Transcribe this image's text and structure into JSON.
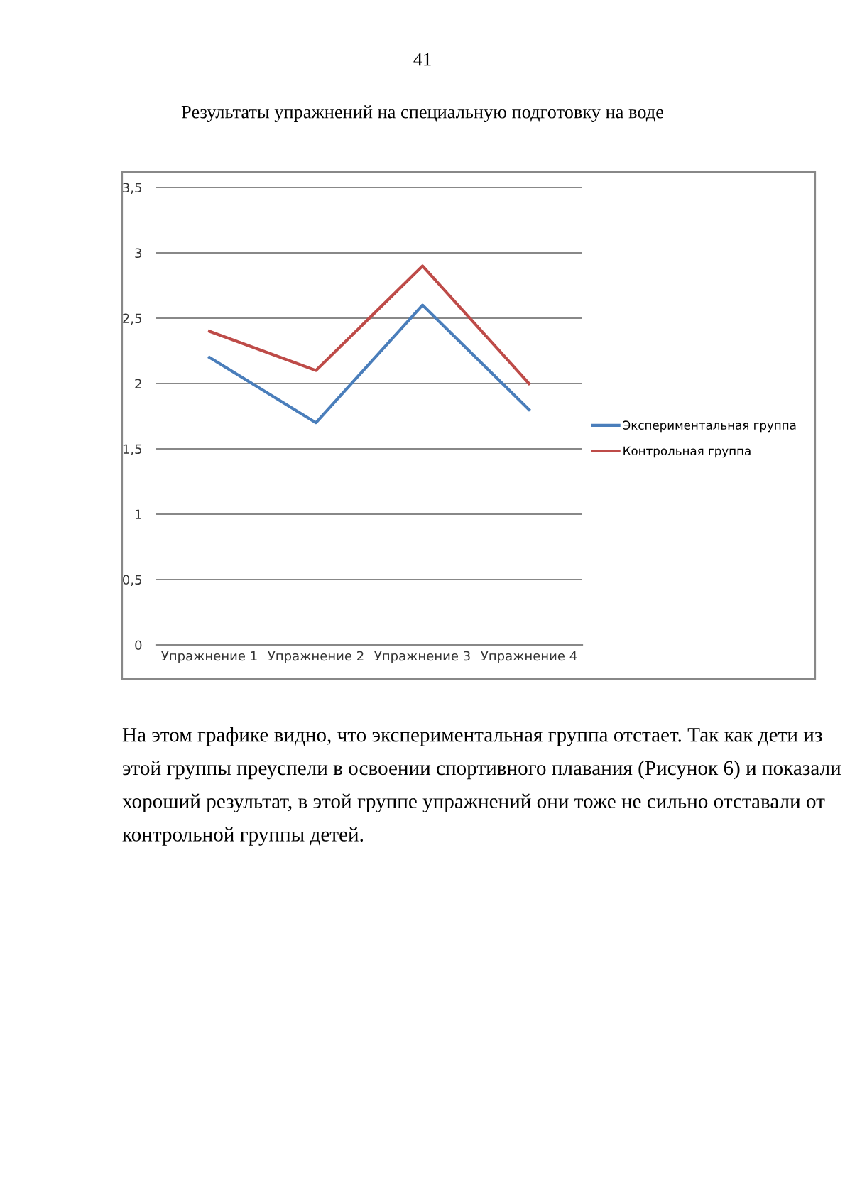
{
  "chart_data": {
    "type": "line",
    "title": "Результаты упражнений на специальную подготовку на воде",
    "categories": [
      "Упражнение 1",
      "Упражнение 2",
      "Упражнение 3",
      "Упражнение 4"
    ],
    "series": [
      {
        "name": "Экспериментальная группа",
        "color": "#4a7ebb",
        "values": [
          2.2,
          1.7,
          2.6,
          1.8
        ]
      },
      {
        "name": "Контрольная группа",
        "color": "#be4b48",
        "values": [
          2.4,
          2.1,
          2.9,
          2.0
        ]
      }
    ],
    "ylim": [
      0,
      3.5
    ],
    "yticks": [
      {
        "value": 0,
        "label": "0"
      },
      {
        "value": 0.5,
        "label": "0,5"
      },
      {
        "value": 1,
        "label": "1"
      },
      {
        "value": 1.5,
        "label": "1,5"
      },
      {
        "value": 2,
        "label": "2"
      },
      {
        "value": 2.5,
        "label": "2,5"
      },
      {
        "value": 3,
        "label": "3"
      },
      {
        "value": 3.5,
        "label": "3,5"
      }
    ],
    "grid": "y",
    "legend": "right",
    "marker": "none",
    "line_style": "solid",
    "annotations": [
      "41",
      "На этом графике видно, что экспериментальная группа отстает. Так как дети из этой группы преуспели в освоении спортивного плавания (Рисунок 6) и показали хороший результат, в этой группе упражнений они тоже не сильно отставали от контрольной группы детей."
    ]
  }
}
